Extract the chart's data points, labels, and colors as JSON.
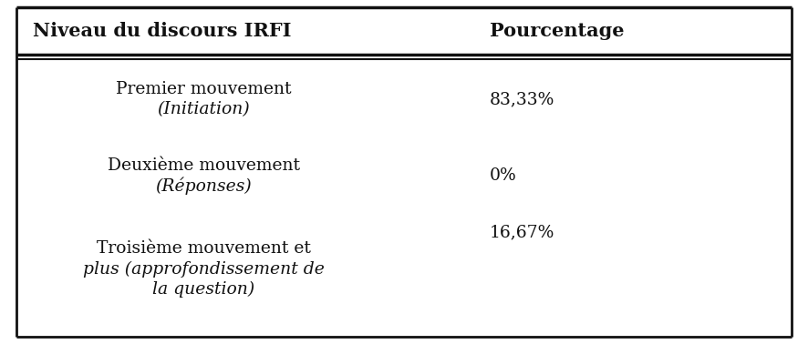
{
  "col1_header": "Niveau du discours IRFI",
  "col2_header": "Pourcentage",
  "rows": [
    {
      "lines": [
        {
          "text": "Premier mouvement",
          "italic": false
        },
        {
          "text": "( Initiation )",
          "italic": true
        }
      ],
      "col2": "83,33%"
    },
    {
      "lines": [
        {
          "text": "Deuxième mouvement",
          "italic": false
        },
        {
          "text": "( Réponses )",
          "italic": true
        }
      ],
      "col2": "0%"
    },
    {
      "lines": [
        {
          "text": "Troisième mouvement et",
          "italic": false
        },
        {
          "text": "plus ( approfondissement de",
          "italic": true
        },
        {
          "text": "la question )",
          "italic": true
        }
      ],
      "col2": "16,67%"
    }
  ],
  "bg_color": "#ffffff",
  "text_color": "#111111",
  "border_color": "#111111",
  "font_size": 13.5,
  "header_font_size": 15
}
